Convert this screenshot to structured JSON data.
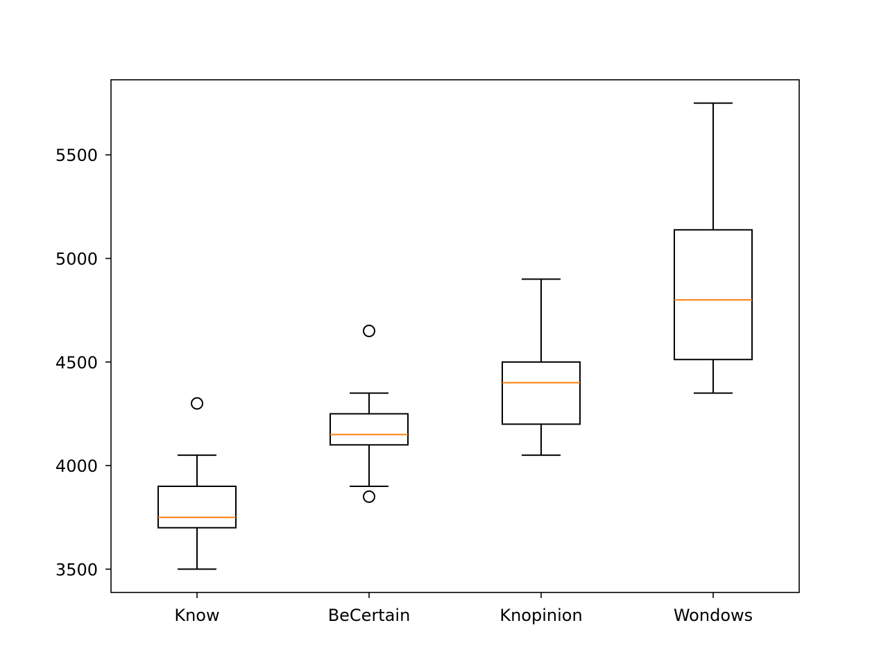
{
  "chart_data": {
    "type": "box",
    "title": "",
    "xlabel": "",
    "ylabel": "",
    "categories": [
      "Know",
      "BeCertain",
      "Knopinion",
      "Wondows"
    ],
    "boxes": [
      {
        "category": "Know",
        "whisker_low": 3500,
        "q1": 3700,
        "median": 3750,
        "q3": 3900,
        "whisker_high": 4050,
        "outliers": [
          4300
        ]
      },
      {
        "category": "BeCertain",
        "whisker_low": 3900,
        "q1": 4100,
        "median": 4150,
        "q3": 4250,
        "whisker_high": 4350,
        "outliers": [
          3850,
          4650
        ]
      },
      {
        "category": "Knopinion",
        "whisker_low": 4050,
        "q1": 4200,
        "median": 4400,
        "q3": 4500,
        "whisker_high": 4900,
        "outliers": []
      },
      {
        "category": "Wondows",
        "whisker_low": 4350,
        "q1": 4512,
        "median": 4800,
        "q3": 5138,
        "whisker_high": 5750,
        "outliers": []
      }
    ],
    "yticks": [
      3500,
      4000,
      4500,
      5000,
      5500
    ],
    "ylim": [
      3387.5,
      5862.5
    ],
    "grid": false,
    "legend": "none",
    "colors": {
      "box": "#000000",
      "median": "#ff7f0e",
      "outlier": "#000000"
    }
  }
}
